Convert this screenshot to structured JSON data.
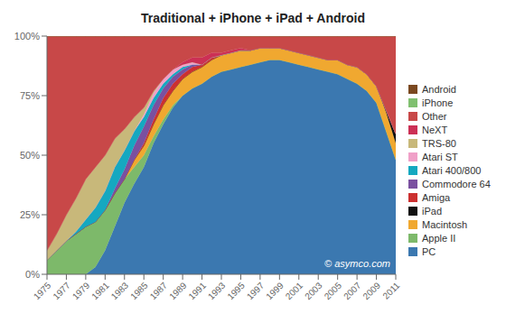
{
  "chart_data": {
    "type": "area",
    "title": "Traditional + iPhone + iPad + Android",
    "stacked": true,
    "grid": false,
    "legend": "right",
    "annotations": [
      "© asymco.com"
    ],
    "x": [
      1975,
      1976,
      1977,
      1978,
      1979,
      1980,
      1981,
      1982,
      1983,
      1984,
      1985,
      1986,
      1987,
      1988,
      1989,
      1990,
      1991,
      1992,
      1993,
      1994,
      1995,
      1996,
      1997,
      1998,
      1999,
      2000,
      2001,
      2002,
      2003,
      2004,
      2005,
      2006,
      2007,
      2008,
      2009,
      2010,
      2011
    ],
    "xlim": [
      1975,
      2011
    ],
    "xticks": [
      1975,
      1977,
      1979,
      1981,
      1983,
      1985,
      1987,
      1989,
      1991,
      1993,
      1995,
      1997,
      1999,
      2001,
      2003,
      2005,
      2007,
      2009,
      2011
    ],
    "ylim": [
      0,
      100
    ],
    "yticks": [
      {
        "value": 0,
        "label": "0%"
      },
      {
        "value": 25,
        "label": "25%"
      },
      {
        "value": 50,
        "label": "50%"
      },
      {
        "value": 75,
        "label": "75%"
      },
      {
        "value": 100,
        "label": "100%"
      }
    ],
    "series": [
      {
        "name": "PC",
        "color": "#3b78b0",
        "values": [
          0,
          0,
          0,
          0,
          0,
          3,
          10,
          20,
          30,
          38,
          45,
          55,
          63,
          70,
          75,
          78,
          80,
          83,
          85,
          86,
          87,
          88,
          89,
          90,
          90,
          89,
          88,
          87,
          86,
          85,
          84,
          82,
          80,
          77,
          72,
          60,
          48
        ]
      },
      {
        "name": "Apple II",
        "color": "#7db96a",
        "values": [
          6,
          10,
          14,
          17,
          20,
          19,
          17,
          14,
          10,
          7,
          5,
          3,
          2,
          1,
          0,
          0,
          0,
          0,
          0,
          0,
          0,
          0,
          0,
          0,
          0,
          0,
          0,
          0,
          0,
          0,
          0,
          0,
          0,
          0,
          0,
          0,
          0
        ]
      },
      {
        "name": "Macintosh",
        "color": "#f0a830",
        "values": [
          0,
          0,
          0,
          0,
          0,
          0,
          0,
          0,
          0,
          3,
          4,
          5,
          6,
          6,
          7,
          7,
          7,
          7,
          7,
          7,
          7,
          6,
          6,
          5,
          5,
          5,
          5,
          5,
          5,
          5,
          6,
          6,
          7,
          7,
          7,
          8,
          7
        ]
      },
      {
        "name": "iPad",
        "color": "#101010",
        "values": [
          0,
          0,
          0,
          0,
          0,
          0,
          0,
          0,
          0,
          0,
          0,
          0,
          0,
          0,
          0,
          0,
          0,
          0,
          0,
          0,
          0,
          0,
          0,
          0,
          0,
          0,
          0,
          0,
          0,
          0,
          0,
          0,
          0,
          0,
          0,
          1,
          4
        ]
      },
      {
        "name": "Amiga",
        "color": "#cc3030",
        "values": [
          0,
          0,
          0,
          0,
          0,
          0,
          0,
          0,
          0,
          0,
          1,
          2,
          3,
          3,
          2,
          2,
          1,
          1,
          0,
          0,
          0,
          0,
          0,
          0,
          0,
          0,
          0,
          0,
          0,
          0,
          0,
          0,
          0,
          0,
          0,
          0,
          0
        ]
      },
      {
        "name": "Commodore 64",
        "color": "#7a50a0",
        "values": [
          0,
          0,
          0,
          0,
          0,
          0,
          0,
          2,
          4,
          6,
          7,
          6,
          4,
          3,
          2,
          1,
          0,
          0,
          0,
          0,
          0,
          0,
          0,
          0,
          0,
          0,
          0,
          0,
          0,
          0,
          0,
          0,
          0,
          0,
          0,
          0,
          0
        ]
      },
      {
        "name": "Atari 400/800",
        "color": "#15a8c0",
        "values": [
          0,
          0,
          0,
          1,
          3,
          6,
          8,
          9,
          8,
          6,
          4,
          3,
          2,
          1,
          1,
          0,
          0,
          0,
          0,
          0,
          0,
          0,
          0,
          0,
          0,
          0,
          0,
          0,
          0,
          0,
          0,
          0,
          0,
          0,
          0,
          0,
          0
        ]
      },
      {
        "name": "Atari ST",
        "color": "#f0a0c8",
        "values": [
          0,
          0,
          0,
          0,
          0,
          0,
          0,
          0,
          0,
          0,
          1,
          2,
          2,
          2,
          1,
          1,
          0,
          0,
          0,
          0,
          0,
          0,
          0,
          0,
          0,
          0,
          0,
          0,
          0,
          0,
          0,
          0,
          0,
          0,
          0,
          0,
          0
        ]
      },
      {
        "name": "TRS-80",
        "color": "#c8b87a",
        "values": [
          4,
          7,
          11,
          14,
          17,
          17,
          15,
          12,
          9,
          6,
          3,
          1,
          0,
          0,
          0,
          0,
          0,
          0,
          0,
          0,
          0,
          0,
          0,
          0,
          0,
          0,
          0,
          0,
          0,
          0,
          0,
          0,
          0,
          0,
          0,
          0,
          0
        ]
      },
      {
        "name": "NeXT",
        "color": "#cc3055",
        "values": [
          0,
          0,
          0,
          0,
          0,
          0,
          0,
          0,
          0,
          0,
          0,
          0,
          0,
          0,
          1,
          2,
          3,
          2,
          1,
          1,
          1,
          0,
          0,
          0,
          0,
          0,
          0,
          0,
          0,
          0,
          0,
          0,
          0,
          0,
          0,
          0,
          0
        ]
      },
      {
        "name": "Other",
        "color": "#c84848",
        "values": [
          90,
          83,
          75,
          68,
          60,
          55,
          50,
          43,
          39,
          34,
          30,
          23,
          18,
          14,
          11,
          9,
          9,
          7,
          7,
          6,
          5,
          6,
          5,
          5,
          5,
          6,
          7,
          8,
          9,
          10,
          10,
          12,
          13,
          16,
          21,
          31,
          41
        ]
      },
      {
        "name": "iPhone",
        "color": "#80c070",
        "values": [
          0,
          0,
          0,
          0,
          0,
          0,
          0,
          0,
          0,
          0,
          0,
          0,
          0,
          0,
          0,
          0,
          0,
          0,
          0,
          0,
          0,
          0,
          0,
          0,
          0,
          0,
          0,
          0,
          0,
          0,
          0,
          0,
          0,
          0,
          0,
          0,
          0
        ]
      },
      {
        "name": "Android",
        "color": "#7a4820",
        "values": [
          0,
          0,
          0,
          0,
          0,
          0,
          0,
          0,
          0,
          0,
          0,
          0,
          0,
          0,
          0,
          0,
          0,
          0,
          0,
          0,
          0,
          0,
          0,
          0,
          0,
          0,
          0,
          0,
          0,
          0,
          0,
          0,
          0,
          0,
          0,
          0,
          0
        ]
      }
    ]
  }
}
